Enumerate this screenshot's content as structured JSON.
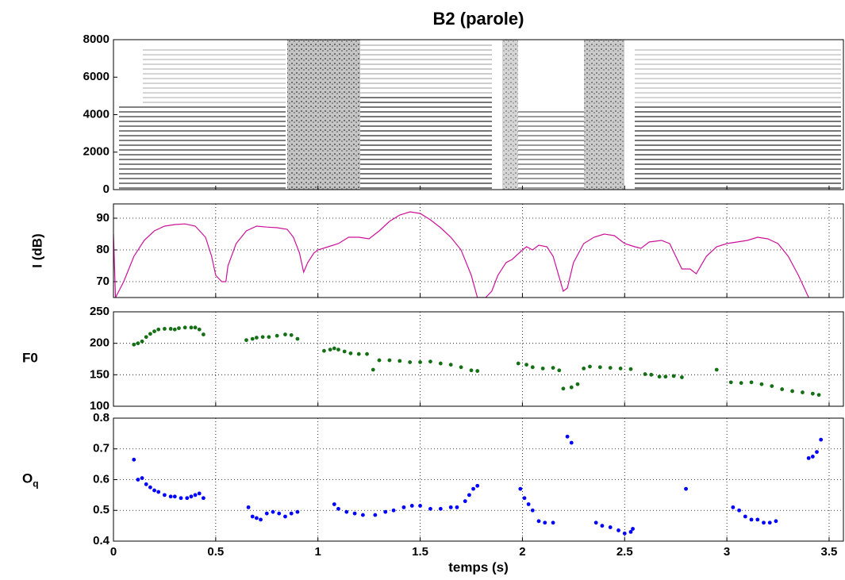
{
  "chart_data": [
    {
      "type": "spectrogram",
      "title": "B2   (parole)",
      "xlim": [
        0,
        3.57
      ],
      "xticks": [
        0,
        0.5,
        1,
        1.5,
        2,
        2.5,
        3,
        3.5
      ],
      "ylim": [
        0,
        8000
      ],
      "yticks": [
        0,
        2000,
        4000,
        6000,
        8000
      ],
      "grid": false,
      "show_xticklabels": false
    },
    {
      "type": "line",
      "ylabel": "I (dB)",
      "color": "#cc1199",
      "grid": true,
      "show_xticklabels": false,
      "xlim": [
        0,
        3.57
      ],
      "xticks": [
        0,
        0.5,
        1,
        1.5,
        2,
        2.5,
        3,
        3.5
      ],
      "ylim": [
        65,
        94.5
      ],
      "yticks": [
        70,
        80,
        90
      ],
      "x": [
        0,
        0.01,
        0.05,
        0.1,
        0.15,
        0.2,
        0.25,
        0.3,
        0.35,
        0.4,
        0.45,
        0.48,
        0.5,
        0.53,
        0.55,
        0.56,
        0.6,
        0.65,
        0.7,
        0.75,
        0.8,
        0.85,
        0.88,
        0.91,
        0.93,
        0.95,
        0.98,
        1.0,
        1.05,
        1.1,
        1.15,
        1.2,
        1.25,
        1.3,
        1.35,
        1.4,
        1.45,
        1.5,
        1.55,
        1.6,
        1.65,
        1.7,
        1.75,
        1.78,
        1.82,
        1.85,
        1.88,
        1.92,
        1.95,
        2.0,
        2.02,
        2.05,
        2.08,
        2.12,
        2.15,
        2.2,
        2.22,
        2.25,
        2.3,
        2.35,
        2.4,
        2.45,
        2.5,
        2.55,
        2.58,
        2.62,
        2.68,
        2.72,
        2.75,
        2.78,
        2.82,
        2.85,
        2.9,
        2.95,
        3.0,
        3.05,
        3.1,
        3.15,
        3.2,
        3.25,
        3.3,
        3.35,
        3.4
      ],
      "values": [
        85,
        65,
        70,
        78,
        83,
        86,
        87.5,
        88,
        88.2,
        87.5,
        84,
        78,
        72,
        70,
        70,
        75,
        82,
        86,
        87.5,
        87.2,
        87,
        86.5,
        84,
        79,
        73,
        76,
        79,
        80,
        81,
        82,
        84,
        84,
        83.5,
        86,
        89,
        91,
        92,
        91.5,
        89.5,
        87,
        84,
        80,
        72,
        65,
        65,
        67,
        72,
        76,
        77,
        80,
        81,
        80,
        81.5,
        81,
        78,
        67,
        68,
        76,
        82,
        84,
        85,
        84.5,
        82,
        81,
        80.5,
        82.5,
        83,
        82,
        78,
        74,
        74,
        72.5,
        78,
        81,
        82,
        82.5,
        83,
        84,
        83.5,
        82,
        78,
        72,
        65
      ]
    },
    {
      "type": "scatter",
      "ylabel": "F0",
      "color": "#157015",
      "grid": true,
      "show_xticklabels": false,
      "xlim": [
        0,
        3.57
      ],
      "xticks": [
        0,
        0.5,
        1,
        1.5,
        2,
        2.5,
        3,
        3.5
      ],
      "ylim": [
        100,
        250
      ],
      "yticks": [
        100,
        150,
        200,
        250
      ],
      "x": [
        0.1,
        0.12,
        0.14,
        0.16,
        0.18,
        0.2,
        0.22,
        0.25,
        0.28,
        0.3,
        0.32,
        0.35,
        0.38,
        0.4,
        0.42,
        0.44,
        0.65,
        0.68,
        0.7,
        0.73,
        0.76,
        0.8,
        0.84,
        0.87,
        0.9,
        1.03,
        1.06,
        1.08,
        1.1,
        1.13,
        1.16,
        1.2,
        1.24,
        1.27,
        1.3,
        1.35,
        1.4,
        1.45,
        1.5,
        1.55,
        1.6,
        1.65,
        1.7,
        1.75,
        1.78,
        1.98,
        2.02,
        2.05,
        2.1,
        2.15,
        2.18,
        2.2,
        2.24,
        2.27,
        2.3,
        2.33,
        2.38,
        2.43,
        2.48,
        2.53,
        2.6,
        2.63,
        2.67,
        2.7,
        2.74,
        2.78,
        2.95,
        3.02,
        3.07,
        3.12,
        3.17,
        3.22,
        3.27,
        3.32,
        3.37,
        3.42,
        3.45
      ],
      "values": [
        198,
        200,
        203,
        210,
        215,
        219,
        222,
        223,
        223,
        222,
        224,
        225,
        225,
        225,
        222,
        214,
        205,
        207,
        209,
        210,
        210,
        212,
        214,
        213,
        207,
        188,
        190,
        192,
        190,
        187,
        184,
        183,
        183,
        158,
        173,
        173,
        172,
        170,
        170,
        171,
        168,
        166,
        162,
        157,
        156,
        168,
        166,
        162,
        160,
        161,
        157,
        128,
        130,
        135,
        160,
        163,
        162,
        161,
        160,
        159,
        151,
        150,
        147,
        147,
        148,
        146,
        158,
        138,
        137,
        138,
        135,
        132,
        127,
        124,
        122,
        120,
        118
      ]
    },
    {
      "type": "scatter",
      "ylabel": "O",
      "ylabel_sub": "q",
      "xlabel": "temps (s)",
      "color": "#0000ff",
      "grid": true,
      "show_xticklabels": true,
      "xlim": [
        0,
        3.57
      ],
      "xticks": [
        0,
        0.5,
        1,
        1.5,
        2,
        2.5,
        3,
        3.5
      ],
      "ylim": [
        0.4,
        0.8
      ],
      "yticks": [
        0.4,
        0.5,
        0.6,
        0.7,
        0.8
      ],
      "x": [
        0.1,
        0.12,
        0.14,
        0.16,
        0.18,
        0.2,
        0.22,
        0.25,
        0.28,
        0.3,
        0.33,
        0.36,
        0.38,
        0.4,
        0.42,
        0.44,
        0.66,
        0.68,
        0.7,
        0.72,
        0.75,
        0.78,
        0.81,
        0.84,
        0.87,
        0.9,
        1.08,
        1.1,
        1.14,
        1.18,
        1.22,
        1.28,
        1.33,
        1.37,
        1.42,
        1.46,
        1.5,
        1.55,
        1.6,
        1.65,
        1.68,
        1.72,
        1.74,
        1.76,
        1.78,
        1.99,
        2.01,
        2.03,
        2.05,
        2.08,
        2.11,
        2.15,
        2.22,
        2.24,
        2.36,
        2.39,
        2.43,
        2.47,
        2.5,
        2.53,
        2.54,
        2.8,
        3.03,
        3.06,
        3.09,
        3.12,
        3.15,
        3.18,
        3.21,
        3.24,
        3.4,
        3.42,
        3.44,
        3.46
      ],
      "values": [
        0.665,
        0.6,
        0.605,
        0.585,
        0.575,
        0.565,
        0.56,
        0.55,
        0.545,
        0.545,
        0.54,
        0.54,
        0.545,
        0.55,
        0.555,
        0.54,
        0.51,
        0.48,
        0.475,
        0.47,
        0.49,
        0.495,
        0.49,
        0.48,
        0.49,
        0.495,
        0.52,
        0.505,
        0.495,
        0.49,
        0.485,
        0.485,
        0.495,
        0.5,
        0.51,
        0.515,
        0.515,
        0.505,
        0.505,
        0.51,
        0.51,
        0.53,
        0.55,
        0.57,
        0.58,
        0.57,
        0.54,
        0.52,
        0.5,
        0.465,
        0.46,
        0.46,
        0.74,
        0.72,
        0.46,
        0.45,
        0.445,
        0.435,
        0.425,
        0.43,
        0.44,
        0.57,
        0.51,
        0.5,
        0.48,
        0.47,
        0.47,
        0.46,
        0.46,
        0.465,
        0.67,
        0.675,
        0.69,
        0.73
      ]
    }
  ]
}
